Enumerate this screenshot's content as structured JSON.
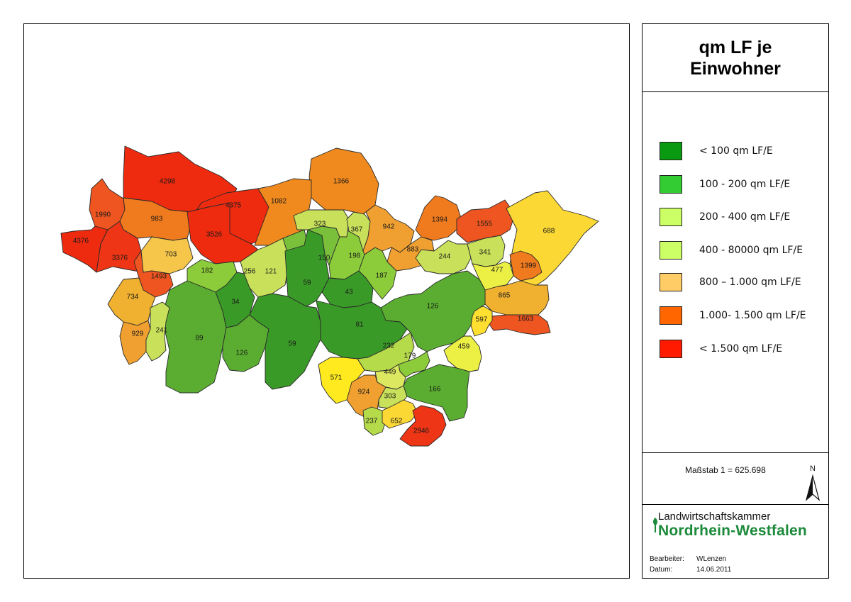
{
  "title": "qm LF je Einwohner",
  "legend": [
    {
      "label": "< 100 qm LF/E",
      "color": "#0a9a12"
    },
    {
      "label": "100 - 200 qm LF/E",
      "color": "#33cc33"
    },
    {
      "label": "200 - 400 qm LF/E",
      "color": "#ccff66"
    },
    {
      "label": "400 - 80000 qm LF/E",
      "color": "#ccff66"
    },
    {
      "label": "800 – 1.000 qm LF/E",
      "color": "#ffcc66"
    },
    {
      "label": "1.000- 1.500 qm LF/E",
      "color": "#ff6600"
    },
    {
      "label": "< 1.500 qm LF/E",
      "color": "#ff1a00"
    }
  ],
  "scale": {
    "text": "Maßstab  1 = 625.698",
    "north_label": "N"
  },
  "logo": {
    "line1": "Landwirtschaftskammer",
    "line2": "Nordrhein-Westfalen"
  },
  "meta": {
    "author_label": "Bearbeiter:",
    "author": "WLenzen",
    "date_label": "Datum:",
    "date": "14.06.2011"
  },
  "regions": [
    {
      "value": "4298",
      "color": "#ee2a0f"
    },
    {
      "value": "4375",
      "color": "#ee2a0f"
    },
    {
      "value": "1366",
      "color": "#f08a1e"
    },
    {
      "value": "1990",
      "color": "#ee5520"
    },
    {
      "value": "983",
      "color": "#f07a1e"
    },
    {
      "value": "3526",
      "color": "#ee2a0f"
    },
    {
      "value": "1082",
      "color": "#f08a1e"
    },
    {
      "value": "4376",
      "color": "#ee2a0f"
    },
    {
      "value": "3376",
      "color": "#ee3515"
    },
    {
      "value": "703",
      "color": "#f5c64a"
    },
    {
      "value": "1493",
      "color": "#ee5520"
    },
    {
      "value": "182",
      "color": "#8ccc3a"
    },
    {
      "value": "256",
      "color": "#c8e05a"
    },
    {
      "value": "121",
      "color": "#7ac03a"
    },
    {
      "value": "734",
      "color": "#f0b030"
    },
    {
      "value": "34",
      "color": "#3a9a28"
    },
    {
      "value": "59",
      "color": "#3a9a28"
    },
    {
      "value": "150",
      "color": "#7ac03a"
    },
    {
      "value": "198",
      "color": "#8ccc3a"
    },
    {
      "value": "43",
      "color": "#3a9a28"
    },
    {
      "value": "187",
      "color": "#8ccc3a"
    },
    {
      "value": "323",
      "color": "#c8e05a"
    },
    {
      "value": "367",
      "color": "#c8e05a"
    },
    {
      "value": "942",
      "color": "#f0a030"
    },
    {
      "value": "883",
      "color": "#f0a030"
    },
    {
      "value": "1394",
      "color": "#f07a1e"
    },
    {
      "value": "1555",
      "color": "#ee5520"
    },
    {
      "value": "688",
      "color": "#fcd835"
    },
    {
      "value": "244",
      "color": "#c8e05a"
    },
    {
      "value": "341",
      "color": "#c8e05a"
    },
    {
      "value": "477",
      "color": "#ecf044"
    },
    {
      "value": "1399",
      "color": "#f07a1e"
    },
    {
      "value": "865",
      "color": "#f0b030"
    },
    {
      "value": "1663",
      "color": "#ee5520"
    },
    {
      "value": "597",
      "color": "#ffe030"
    },
    {
      "value": "126",
      "color": "#5aad30"
    },
    {
      "value": "89",
      "color": "#5aad30"
    },
    {
      "value": "126",
      "color": "#5aad30"
    },
    {
      "value": "59",
      "color": "#3a9a28"
    },
    {
      "value": "81",
      "color": "#3a9a28"
    },
    {
      "value": "929",
      "color": "#f0a030"
    },
    {
      "value": "241",
      "color": "#c8e05a"
    },
    {
      "value": "232",
      "color": "#b5da4a"
    },
    {
      "value": "179",
      "color": "#8ccc3a"
    },
    {
      "value": "459",
      "color": "#ecf044"
    },
    {
      "value": "571",
      "color": "#ffea20"
    },
    {
      "value": "449",
      "color": "#dce860"
    },
    {
      "value": "924",
      "color": "#f0a030"
    },
    {
      "value": "303",
      "color": "#c8e05a"
    },
    {
      "value": "166",
      "color": "#5aad30"
    },
    {
      "value": "237",
      "color": "#b5da4a"
    },
    {
      "value": "652",
      "color": "#fcd835"
    },
    {
      "value": "2946",
      "color": "#ee3515"
    }
  ]
}
